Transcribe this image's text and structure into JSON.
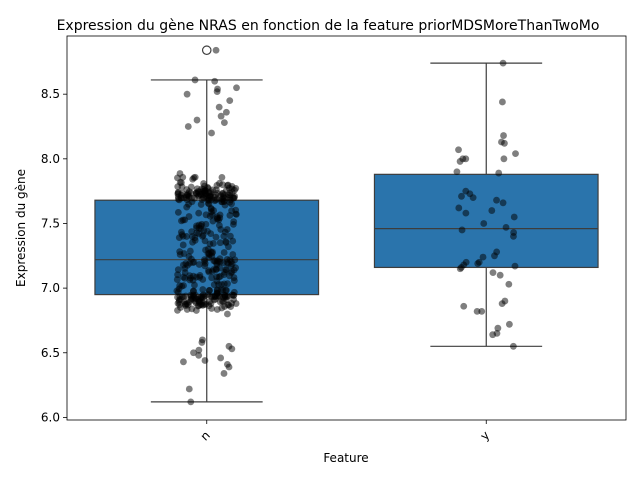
{
  "chart_data": {
    "type": "box",
    "title": "Expression du gène NRAS en fonction de la feature priorMDSMoreThanTwoMo",
    "xlabel": "Feature",
    "ylabel": "Expression du gène",
    "categories": [
      "n",
      "y"
    ],
    "ylim": [
      5.98,
      8.95
    ],
    "yticks": [
      6.0,
      6.5,
      7.0,
      7.5,
      8.0,
      8.5
    ],
    "ytick_labels": [
      "6.0",
      "6.5",
      "7.0",
      "7.5",
      "8.0",
      "8.5"
    ],
    "grid": false,
    "legend": "none",
    "box_color": "#2a74ac",
    "edge_color": "#3d3d3d",
    "point_color": "#000000",
    "boxes": [
      {
        "category": "n",
        "whisker_low": 6.12,
        "q1": 6.95,
        "median": 7.22,
        "q3": 7.68,
        "whisker_high": 8.61,
        "outliers": [
          8.84
        ]
      },
      {
        "category": "y",
        "whisker_low": 6.55,
        "q1": 7.16,
        "median": 7.46,
        "q3": 7.88,
        "whisker_high": 8.74,
        "outliers": []
      }
    ],
    "points": {
      "y": [
        8.74,
        8.44,
        8.18,
        8.13,
        8.12,
        8.07,
        8.04,
        8.0,
        8.0,
        8.0,
        7.98,
        7.9,
        7.89,
        7.75,
        7.73,
        7.71,
        7.7,
        7.68,
        7.66,
        7.62,
        7.6,
        7.58,
        7.55,
        7.5,
        7.47,
        7.45,
        7.43,
        7.4,
        7.28,
        7.25,
        7.24,
        7.2,
        7.2,
        7.19,
        7.18,
        7.17,
        7.16,
        7.15,
        7.12,
        7.1,
        7.03,
        6.9,
        6.88,
        6.86,
        6.82,
        6.82,
        6.72,
        6.69,
        6.65,
        6.64,
        6.55
      ],
      "n_extra": [
        8.84,
        8.61,
        8.6,
        8.55,
        8.54,
        8.52,
        8.5,
        8.45,
        8.4,
        8.36,
        8.33,
        8.3,
        8.28,
        8.25,
        8.2,
        6.12,
        6.22,
        6.34,
        6.39,
        6.41,
        6.43,
        6.44,
        6.46,
        6.48,
        6.5,
        6.52,
        6.53,
        6.55,
        6.58,
        6.6
      ]
    }
  }
}
